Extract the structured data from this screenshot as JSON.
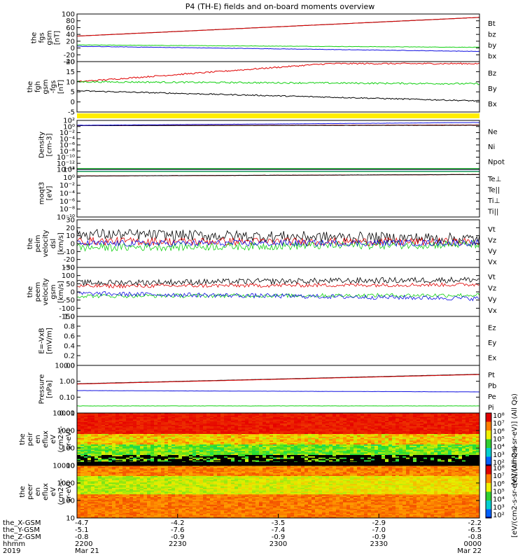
{
  "title": "P4 (TH-E) fields and on-board moments overview",
  "colors": {
    "black": "#000000",
    "red": "#e00000",
    "green": "#10d010",
    "blue": "#1010e0",
    "yellow": "#ffee00"
  },
  "chart_data": [
    {
      "type": "line",
      "id": "fgs",
      "ylabel": [
        "the",
        "fgs",
        "gsm",
        "[nT]"
      ],
      "yticks": [
        "100",
        "80",
        "60",
        "40",
        "20",
        "0",
        "-20",
        "-40"
      ],
      "ylim": [
        -40,
        100
      ],
      "series": [
        {
          "name": "Bt",
          "color": "black",
          "start": 35,
          "end": 90,
          "noise": 0.3
        },
        {
          "name": "bz",
          "color": "red",
          "start": 35,
          "end": 90,
          "noise": 0.3
        },
        {
          "name": "by",
          "color": "green",
          "start": 9,
          "end": 2,
          "noise": 0.6
        },
        {
          "name": "bx",
          "color": "blue",
          "start": 5,
          "end": -10,
          "noise": 0.6
        }
      ]
    },
    {
      "type": "line",
      "id": "fgh",
      "ylabel": [
        "the",
        "fgh",
        "gsm",
        "-fgs",
        "[nT]"
      ],
      "yticks": [
        "20",
        "15",
        "10",
        "5",
        "0",
        "-5"
      ],
      "ylim": [
        -5,
        20
      ],
      "series": [
        {
          "name": "Bz",
          "color": "red",
          "start": 10,
          "end": 19,
          "noise": 0.35
        },
        {
          "name": "By",
          "color": "green",
          "start": 10,
          "end": 9,
          "noise": 0.4
        },
        {
          "name": "Bx",
          "color": "black",
          "start": 5.5,
          "end": 0.5,
          "noise": 0.3
        }
      ]
    },
    {
      "type": "line",
      "id": "density",
      "ylabel": [
        "Density",
        "[cm-3]"
      ],
      "yticks": [
        "10²",
        "10⁰",
        "10⁻²",
        "10⁻⁴",
        "10⁻⁶",
        "10⁻⁸",
        "10⁻¹⁰",
        "10⁻¹²",
        "10⁻¹⁴"
      ],
      "ylim": [
        -14,
        2
      ],
      "log": true,
      "series": [
        {
          "name": "Ne",
          "color": "red",
          "start": 0.3,
          "end": 0.5,
          "noise": 0.03
        },
        {
          "name": "Ni",
          "color": "black",
          "start": 0.3,
          "end": 0.4,
          "noise": 0.03
        },
        {
          "name": "Npot",
          "color": "blue",
          "start": 0.4,
          "end": 1.3,
          "noise": 0.03
        },
        {
          "name": "",
          "color": "blue",
          "start": -13.8,
          "end": -13.8,
          "noise": 0.0
        },
        {
          "name": "",
          "color": "green",
          "start": -13.7,
          "end": -13.7,
          "noise": 0.0
        }
      ]
    },
    {
      "type": "line",
      "id": "moqt3",
      "ylabel": [
        "moqt3",
        "[eV]"
      ],
      "yticks": [
        "10²",
        "10⁰",
        "10⁻²",
        "10⁻⁴",
        "10⁻⁶",
        "10⁻⁸",
        "10⁻¹⁰"
      ],
      "ylim": [
        -10,
        3
      ],
      "log": true,
      "series": [
        {
          "name": "Te⊥",
          "color": "red",
          "start": 1.2,
          "end": 1.6,
          "noise": 0.03
        },
        {
          "name": "Te||",
          "color": "black",
          "start": 1.2,
          "end": 1.6,
          "noise": 0.03
        },
        {
          "name": "Ti⊥",
          "color": "blue",
          "start": 2.5,
          "end": 2.5,
          "noise": 0.0
        },
        {
          "name": "Ti||",
          "color": "green",
          "start": 2.4,
          "end": 2.4,
          "noise": 0.0
        }
      ]
    },
    {
      "type": "line",
      "id": "peim",
      "ylabel": [
        "the",
        "peim",
        "velocity",
        "dsl",
        "[km/s]"
      ],
      "yticks": [
        "30",
        "20",
        "10",
        "0",
        "-10",
        "-20",
        "-30"
      ],
      "ylim": [
        -30,
        30
      ],
      "series": [
        {
          "name": "Vt",
          "color": "black",
          "start": 12,
          "end": 6,
          "noise": 7
        },
        {
          "name": "Vz",
          "color": "red",
          "start": 3,
          "end": 2,
          "noise": 5
        },
        {
          "name": "Vy",
          "color": "green",
          "start": -5,
          "end": -1,
          "noise": 5
        },
        {
          "name": "Vx",
          "color": "blue",
          "start": 0,
          "end": 1,
          "noise": 4
        }
      ]
    },
    {
      "type": "line",
      "id": "peem",
      "ylabel": [
        "the",
        "peem",
        "velocity",
        "gsm",
        "[km/s]"
      ],
      "yticks": [
        "150",
        "100",
        "50",
        "0",
        "-50",
        "-100",
        "-150"
      ],
      "ylim": [
        -150,
        150
      ],
      "series": [
        {
          "name": "Vt",
          "color": "black",
          "start": 55,
          "end": 75,
          "noise": 18
        },
        {
          "name": "Vz",
          "color": "red",
          "start": 35,
          "end": 45,
          "noise": 12
        },
        {
          "name": "Vy",
          "color": "green",
          "start": -25,
          "end": -20,
          "noise": 12
        },
        {
          "name": "Vx",
          "color": "blue",
          "start": -10,
          "end": -40,
          "noise": 14
        }
      ]
    },
    {
      "type": "line",
      "id": "efield",
      "ylabel": [
        "E=-VxB",
        "[mV/m]"
      ],
      "yticks": [
        "1.0",
        "0.8",
        "0.6",
        "0.4",
        "0.2",
        "0.0"
      ],
      "ylim": [
        0,
        1
      ],
      "series": [
        {
          "name": "Ez",
          "color": "red",
          "start": null,
          "end": null,
          "noise": 0
        },
        {
          "name": "Ey",
          "color": "green",
          "start": null,
          "end": null,
          "noise": 0
        },
        {
          "name": "Ex",
          "color": "blue",
          "start": null,
          "end": null,
          "noise": 0
        }
      ]
    },
    {
      "type": "line",
      "id": "pressure",
      "ylabel": [
        "Pressure",
        "[nPa]"
      ],
      "yticks": [
        "10.00",
        "1.00",
        "0.10",
        "0.01"
      ],
      "ylim": [
        -2.3,
        1.2
      ],
      "log": true,
      "series": [
        {
          "name": "Pt",
          "color": "black",
          "start": -0.15,
          "end": 0.55,
          "noise": 0.005
        },
        {
          "name": "Pb",
          "color": "red",
          "start": -0.17,
          "end": 0.53,
          "noise": 0.005
        },
        {
          "name": "Pe",
          "color": "green",
          "start": -1.78,
          "end": -1.78,
          "noise": 0.01
        },
        {
          "name": "Pi",
          "color": "blue",
          "start": -0.65,
          "end": -0.75,
          "noise": 0.005
        }
      ]
    },
    {
      "type": "heatmap",
      "id": "peir",
      "ylabel": [
        "the",
        "peir",
        "en",
        "eflux",
        "eV",
        "(cm2-s-",
        "sr-eV)"
      ],
      "yticks": [
        "10000",
        "1000",
        "100",
        "10"
      ],
      "ylim": [
        5,
        25000
      ],
      "log": true
    },
    {
      "type": "heatmap",
      "id": "peer",
      "ylabel": [
        "the",
        "peer",
        "en",
        "eflux",
        "eV",
        "(cm2-s-",
        "sr-eV)"
      ],
      "yticks": [
        "10000",
        "1000",
        "100",
        "10"
      ],
      "ylim": [
        5,
        25000
      ],
      "log": true
    }
  ],
  "colorbar": {
    "label": "[eV/(cm2-s-sr-eV)] (All Qs)",
    "label2": "[eV/(cm2-s-sr-eV)] (All Qs)",
    "ticks_top": [
      "10⁸",
      "10⁷",
      "10⁶",
      "10⁵",
      "10⁴",
      "10³",
      "10²"
    ],
    "ticks_bottom": [
      "10⁸",
      "10⁷",
      "10⁶",
      "10⁵",
      "10⁴",
      "10³",
      "10²"
    ]
  },
  "xaxis": {
    "row_labels": [
      "the_X-GSM",
      "the_Y-GSM",
      "the_Z-GSM",
      "hhmm",
      "2019"
    ],
    "ticks": [
      {
        "values": [
          "-4.7",
          "-5.1",
          "-0.8",
          "2200",
          "Mar 21"
        ]
      },
      {
        "values": [
          "-4.2",
          "-7.6",
          "-0.9",
          "2230",
          ""
        ]
      },
      {
        "values": [
          "-3.5",
          "-7.4",
          "-0.9",
          "2300",
          ""
        ]
      },
      {
        "values": [
          "-2.9",
          "-7.0",
          "-0.9",
          "2330",
          ""
        ]
      },
      {
        "values": [
          "-2.2",
          "-6.5",
          "-0.8",
          "0000",
          "Mar 22"
        ]
      }
    ]
  }
}
